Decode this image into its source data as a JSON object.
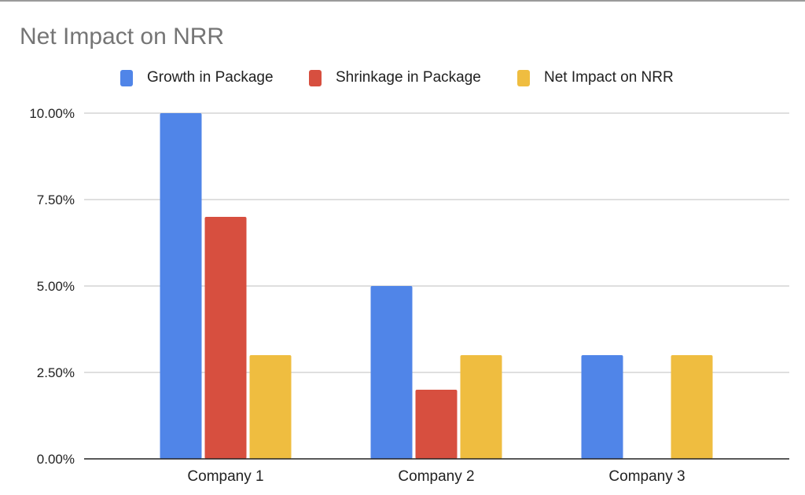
{
  "chart_data": {
    "type": "bar",
    "title": "Net Impact on NRR",
    "xlabel": "",
    "ylabel": "",
    "categories": [
      "Company 1",
      "Company 2",
      "Company 3"
    ],
    "series": [
      {
        "name": "Growth in Package",
        "color": "#5085e8",
        "values": [
          10.0,
          5.0,
          3.0
        ]
      },
      {
        "name": "Shrinkage in Package",
        "color": "#d74f3f",
        "values": [
          7.0,
          2.0,
          0.0
        ]
      },
      {
        "name": "Net Impact on NRR",
        "color": "#efbd40",
        "values": [
          3.0,
          3.0,
          3.0
        ]
      }
    ],
    "ylim": [
      0,
      10
    ],
    "yticks": [
      0,
      2.5,
      5,
      7.5,
      10
    ],
    "ytick_labels": [
      "0.00%",
      "2.50%",
      "5.00%",
      "7.50%",
      "10.00%"
    ],
    "grid": true,
    "legend_position": "top"
  }
}
